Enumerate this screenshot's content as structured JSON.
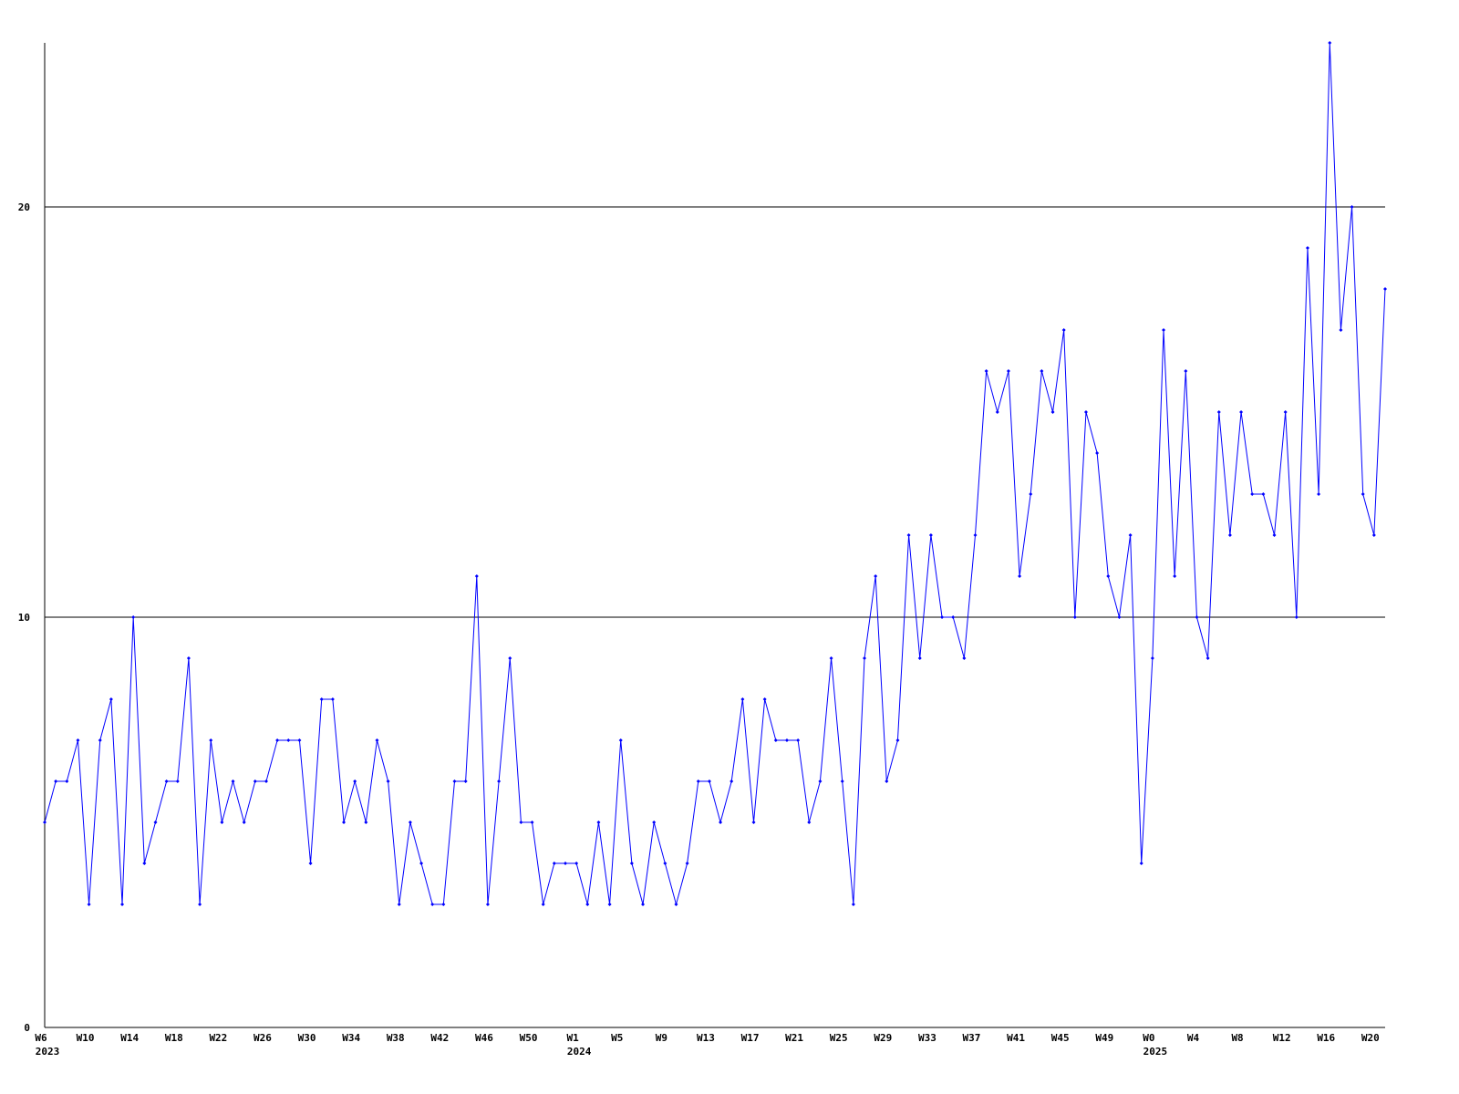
{
  "chart_data": {
    "type": "line",
    "categories": [
      "W6",
      null,
      null,
      null,
      "W10",
      null,
      null,
      null,
      "W14",
      null,
      null,
      null,
      "W18",
      null,
      null,
      null,
      "W22",
      null,
      null,
      null,
      "W26",
      null,
      null,
      null,
      "W30",
      null,
      null,
      null,
      "W34",
      null,
      null,
      null,
      "W38",
      null,
      null,
      null,
      "W42",
      null,
      null,
      null,
      "W46",
      null,
      null,
      null,
      "W50",
      null,
      null,
      null,
      "W1",
      null,
      null,
      null,
      "W5",
      null,
      null,
      null,
      "W9",
      null,
      null,
      null,
      "W13",
      null,
      null,
      null,
      "W17",
      null,
      null,
      null,
      "W21",
      null,
      null,
      null,
      "W25",
      null,
      null,
      null,
      "W29",
      null,
      null,
      null,
      "W33",
      null,
      null,
      null,
      "W37",
      null,
      null,
      null,
      "W41",
      null,
      null,
      null,
      "W45",
      null,
      null,
      null,
      "W49",
      null,
      null,
      null,
      "W0",
      null,
      null,
      null,
      "W4",
      null,
      null,
      null,
      "W8",
      null,
      null,
      null,
      "W12",
      null,
      null,
      null,
      "W16",
      null,
      null,
      null,
      "W20",
      null
    ],
    "years": [
      "2023",
      null,
      null,
      null,
      null,
      null,
      null,
      null,
      null,
      null,
      null,
      null,
      null,
      null,
      null,
      null,
      null,
      null,
      null,
      null,
      null,
      null,
      null,
      null,
      null,
      null,
      null,
      null,
      null,
      null,
      null,
      null,
      null,
      null,
      null,
      null,
      null,
      null,
      null,
      null,
      null,
      null,
      null,
      null,
      null,
      null,
      null,
      null,
      "2024",
      null,
      null,
      null,
      null,
      null,
      null,
      null,
      null,
      null,
      null,
      null,
      null,
      null,
      null,
      null,
      null,
      null,
      null,
      null,
      null,
      null,
      null,
      null,
      null,
      null,
      null,
      null,
      null,
      null,
      null,
      null,
      null,
      null,
      null,
      null,
      null,
      null,
      null,
      null,
      null,
      null,
      null,
      null,
      null,
      null,
      null,
      null,
      null,
      null,
      null,
      null,
      "2025",
      null,
      null,
      null,
      null,
      null,
      null,
      null,
      null,
      null,
      null,
      null,
      null,
      null,
      null,
      null,
      null,
      null,
      null,
      null,
      null,
      null
    ],
    "values": [
      5,
      6,
      6,
      7,
      3,
      7,
      8,
      3,
      10,
      4,
      5,
      6,
      6,
      9,
      3,
      7,
      5,
      6,
      5,
      6,
      6,
      7,
      7,
      7,
      4,
      8,
      8,
      5,
      6,
      5,
      7,
      6,
      3,
      5,
      4,
      3,
      3,
      6,
      6,
      11,
      3,
      6,
      9,
      5,
      5,
      3,
      4,
      4,
      4,
      3,
      5,
      3,
      7,
      4,
      3,
      5,
      4,
      3,
      4,
      6,
      6,
      5,
      6,
      8,
      5,
      8,
      7,
      7,
      7,
      5,
      6,
      9,
      6,
      3,
      9,
      11,
      6,
      7,
      12,
      9,
      12,
      10,
      10,
      9,
      12,
      16,
      15,
      16,
      11,
      13,
      16,
      15,
      17,
      10,
      15,
      14,
      11,
      10,
      12,
      4,
      9,
      17,
      11,
      16,
      10,
      9,
      15,
      12,
      15,
      13,
      13,
      12,
      15,
      10,
      19,
      13,
      24,
      17,
      20,
      13,
      12,
      18
    ],
    "color": "#0000ff",
    "ylim": [
      0,
      24
    ],
    "yticks": [
      0,
      10,
      20
    ],
    "grid": true
  }
}
